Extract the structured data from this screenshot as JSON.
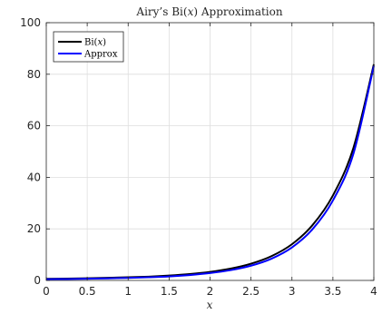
{
  "chart_data": {
    "type": "line",
    "title": "Airy’s Bi(x) Approximation",
    "title_parts": {
      "prefix": "Airy’s Bi(",
      "var": "x",
      "suffix": ") Approximation"
    },
    "xlabel": "x",
    "ylabel": "",
    "xlim": [
      0,
      4
    ],
    "ylim": [
      0,
      100
    ],
    "x_ticks": [
      0,
      0.5,
      1,
      1.5,
      2,
      2.5,
      3,
      3.5,
      4
    ],
    "x_tick_labels": [
      "0",
      "0.5",
      "1",
      "1.5",
      "2",
      "2.5",
      "3",
      "3.5",
      "4"
    ],
    "y_ticks": [
      0,
      20,
      40,
      60,
      80,
      100
    ],
    "y_tick_labels": [
      "0",
      "20",
      "40",
      "60",
      "80",
      "100"
    ],
    "grid": true,
    "legend_position": "top-left",
    "x": [
      0,
      0.25,
      0.5,
      0.75,
      1,
      1.25,
      1.5,
      1.75,
      2,
      2.25,
      2.5,
      2.75,
      3,
      3.25,
      3.5,
      3.75,
      4
    ],
    "series": [
      {
        "name": "Bi(x)",
        "name_parts": {
          "prefix": "Bi(",
          "var": "x",
          "suffix": ")"
        },
        "color": "#000000",
        "values": [
          0.61,
          0.72,
          0.85,
          1.02,
          1.21,
          1.47,
          1.88,
          2.46,
          3.3,
          4.57,
          6.48,
          9.41,
          14.04,
          21.42,
          32.95,
          51.36,
          83.85
        ]
      },
      {
        "name": "Approx",
        "color": "#0000ff",
        "values": [
          0.45,
          0.55,
          0.67,
          0.81,
          0.99,
          1.22,
          1.55,
          2.08,
          2.84,
          3.98,
          5.72,
          8.44,
          12.8,
          19.82,
          31.01,
          49.09,
          83.24
        ]
      }
    ]
  }
}
